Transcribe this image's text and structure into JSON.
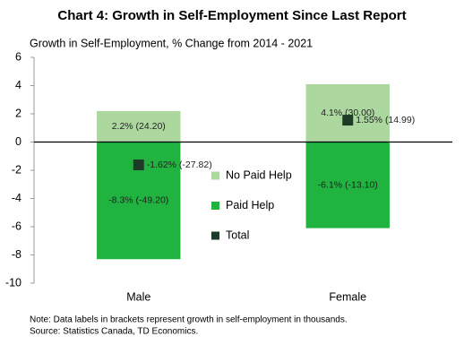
{
  "chart_data": {
    "type": "stacked_bar",
    "title": "Chart 4: Growth in Self-Employment  Since Last Report",
    "subtitle": "Growth in Self-Employment, % Change from 2014 - 2021",
    "categories": [
      "Male",
      "Female"
    ],
    "series": [
      {
        "name": "No Paid Help",
        "color": "#acd8a0",
        "values": [
          2.2,
          4.1
        ],
        "value_labels": [
          "2.2% (24.20)",
          "4.1% (30.00)"
        ]
      },
      {
        "name": "Paid Help",
        "color": "#20b33f",
        "values": [
          -8.3,
          -6.1
        ],
        "value_labels": [
          "-8.3% (-49.20)",
          "-6.1% (-13.10)"
        ]
      },
      {
        "name": "Total",
        "type": "marker",
        "color": "#1e3b28",
        "values": [
          -1.62,
          1.55
        ],
        "value_labels": [
          "-1.62% (-27.82)",
          "1.55% (14.99)"
        ]
      }
    ],
    "ylim": [
      -10,
      6
    ],
    "yticks": [
      -10,
      -8,
      -6,
      -4,
      -2,
      0,
      2,
      4,
      6
    ],
    "grid": false,
    "legend": "center",
    "notes": [
      "Note: Data labels in brackets represent growth in self-employment  in thousands.",
      "Source: Statistics Canada, TD Economics."
    ]
  }
}
